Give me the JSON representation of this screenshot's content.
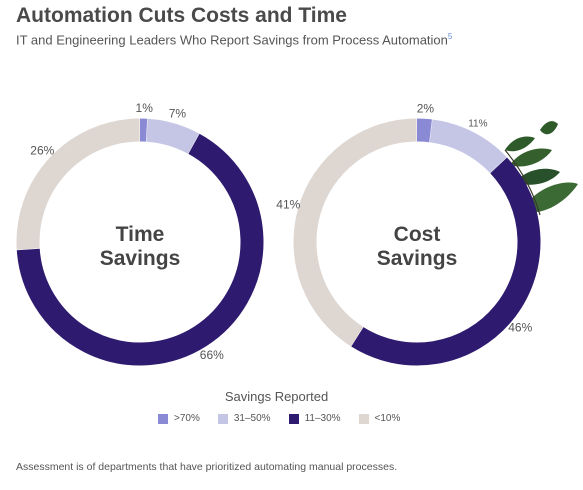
{
  "header": {
    "title": "Automation Cuts Costs and Time",
    "subtitle": "IT and Engineering Leaders Who Report Savings from Process Automation",
    "footnote_marker": "5"
  },
  "chart_data": [
    {
      "type": "pie",
      "title": "Time Savings",
      "title_lines": [
        "Time",
        "Savings"
      ],
      "categories": [
        ">70%",
        "31–50%",
        "11–30%",
        "<10%"
      ],
      "values": [
        1,
        7,
        66,
        26
      ],
      "labels": [
        "1%",
        "7%",
        "66%",
        "26%"
      ]
    },
    {
      "type": "pie",
      "title": "Cost Savings",
      "title_lines": [
        "Cost",
        "Savings"
      ],
      "categories": [
        ">70%",
        "31–50%",
        "11–30%",
        "<10%"
      ],
      "values": [
        2,
        11,
        46,
        41
      ],
      "labels": [
        "2%",
        "11%",
        "46%",
        "41%"
      ]
    }
  ],
  "legend": {
    "title": "Savings Reported",
    "items": [
      {
        "label": ">70%",
        "color": "#8a89d4"
      },
      {
        "label": "31–50%",
        "color": "#c5c6e6"
      },
      {
        "label": "11–30%",
        "color": "#2e1a6e"
      },
      {
        "label": "<10%",
        "color": "#ddd6d1"
      }
    ]
  },
  "footnote": "Assessment is of departments that have prioritized automating manual processes."
}
